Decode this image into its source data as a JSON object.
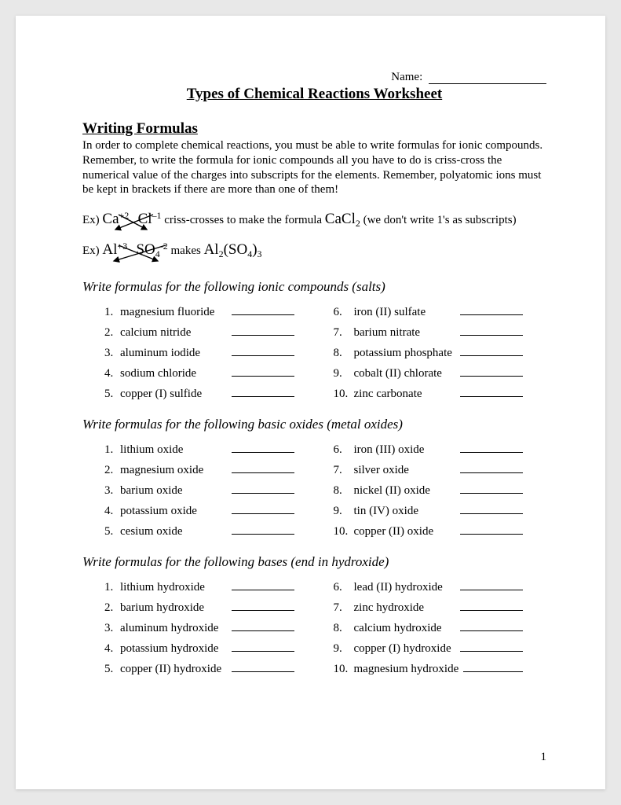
{
  "name_label": "Name:",
  "title": "Types of Chemical Reactions Worksheet",
  "section1_head": "Writing Formulas",
  "intro": "In order to complete chemical reactions, you must be able to write formulas for ionic compounds.  Remember, to write the formula for ionic compounds all you have to do is criss-cross the numerical value of the charges into subscripts for the elements.  Remember, polyatomic ions must be kept in brackets if there are more than one of them!",
  "ex1": {
    "prefix": "Ex) ",
    "ion1": "Ca",
    "charge1": "+2",
    "ion2": "Cl",
    "charge2": "–1",
    "mid": " criss-crosses to make the formula ",
    "result": "CaCl",
    "result_sub": "2",
    "note": " (we don't write 1's as subscripts)"
  },
  "ex2": {
    "prefix": "Ex) ",
    "ion1": "Al",
    "charge1": "+3",
    "ion2": "SO",
    "ion2_sub": "4",
    "charge2": "-2",
    "mid": "  makes ",
    "result_a": "Al",
    "result_a_sub": "2",
    "result_b": "(SO",
    "result_b_sub": "4",
    "result_c": ")",
    "result_c_sub": "3"
  },
  "sections": [
    {
      "head": "Write formulas for the following ionic compounds (salts)",
      "left": [
        {
          "n": "1.",
          "t": "magnesium fluoride"
        },
        {
          "n": "2.",
          "t": "calcium nitride"
        },
        {
          "n": "3.",
          "t": "aluminum iodide"
        },
        {
          "n": "4.",
          "t": "sodium chloride"
        },
        {
          "n": "5.",
          "t": "copper (I) sulfide"
        }
      ],
      "right": [
        {
          "n": "6.",
          "t": "iron (II) sulfate"
        },
        {
          "n": "7.",
          "t": "barium nitrate"
        },
        {
          "n": "8.",
          "t": "potassium phosphate"
        },
        {
          "n": "9.",
          "t": "cobalt (II) chlorate"
        },
        {
          "n": "10.",
          "t": "zinc carbonate"
        }
      ]
    },
    {
      "head": "Write formulas for the following basic oxides (metal oxides)",
      "left": [
        {
          "n": "1.",
          "t": "lithium oxide"
        },
        {
          "n": "2.",
          "t": "magnesium oxide"
        },
        {
          "n": "3.",
          "t": "barium oxide"
        },
        {
          "n": "4.",
          "t": "potassium oxide"
        },
        {
          "n": "5.",
          "t": "cesium oxide"
        }
      ],
      "right": [
        {
          "n": "6.",
          "t": "iron (III) oxide"
        },
        {
          "n": "7.",
          "t": "silver oxide"
        },
        {
          "n": "8.",
          "t": "nickel (II) oxide"
        },
        {
          "n": "9.",
          "t": "tin (IV) oxide"
        },
        {
          "n": "10.",
          "t": "copper (II) oxide"
        }
      ]
    },
    {
      "head": "Write formulas for the following bases (end in hydroxide)",
      "left": [
        {
          "n": "1.",
          "t": "lithium hydroxide"
        },
        {
          "n": "2.",
          "t": "barium hydroxide"
        },
        {
          "n": "3.",
          "t": "aluminum hydroxide"
        },
        {
          "n": "4.",
          "t": "potassium hydroxide"
        },
        {
          "n": "5.",
          "t": "copper (II) hydroxide"
        }
      ],
      "right": [
        {
          "n": "6.",
          "t": "lead (II) hydroxide"
        },
        {
          "n": "7.",
          "t": "zinc hydroxide"
        },
        {
          "n": "8.",
          "t": "calcium hydroxide"
        },
        {
          "n": "9.",
          "t": "copper (I) hydroxide"
        },
        {
          "n": "10.",
          "t": "magnesium hydroxide"
        }
      ]
    }
  ],
  "page_number": "1"
}
